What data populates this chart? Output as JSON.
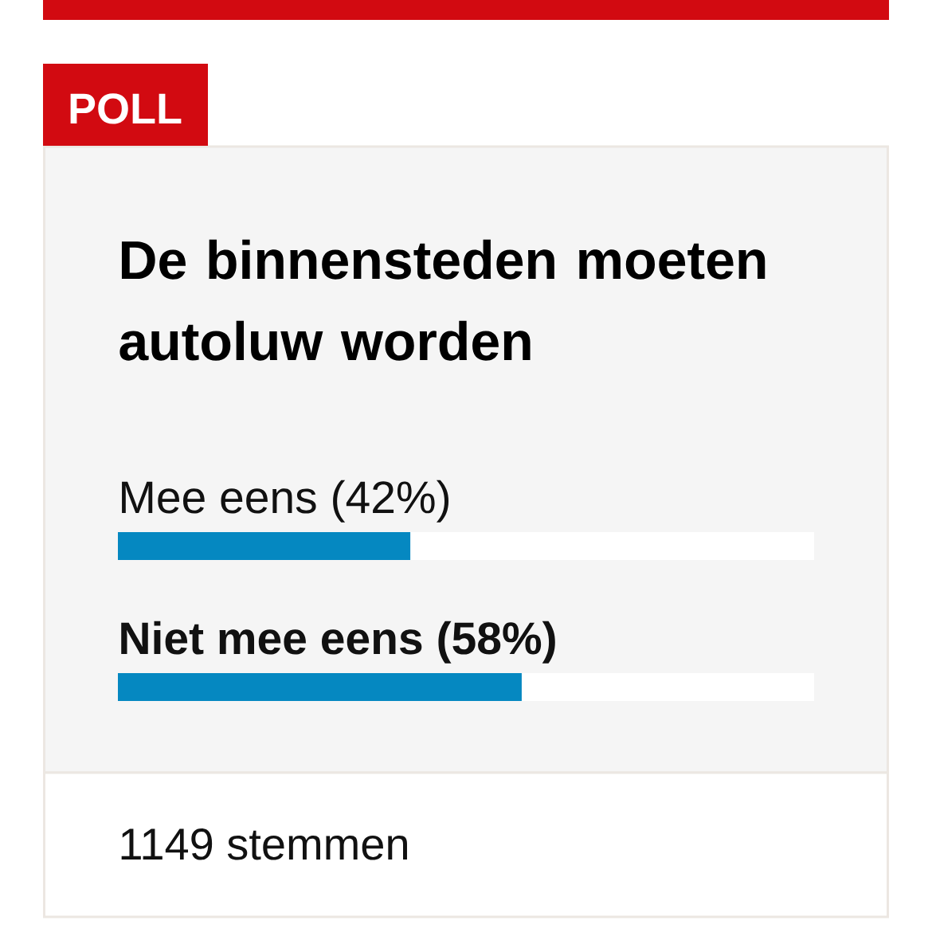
{
  "chart_data": {
    "type": "bar",
    "orientation": "horizontal",
    "title": "De binnensteden moeten autoluw worden",
    "categories": [
      "Mee eens",
      "Niet mee eens"
    ],
    "values": [
      42,
      58
    ],
    "value_labels": [
      "(42%)",
      "(58%)"
    ],
    "color": "#0588c1",
    "annotations": [
      "POLL",
      "1149 stemmen"
    ]
  }
}
